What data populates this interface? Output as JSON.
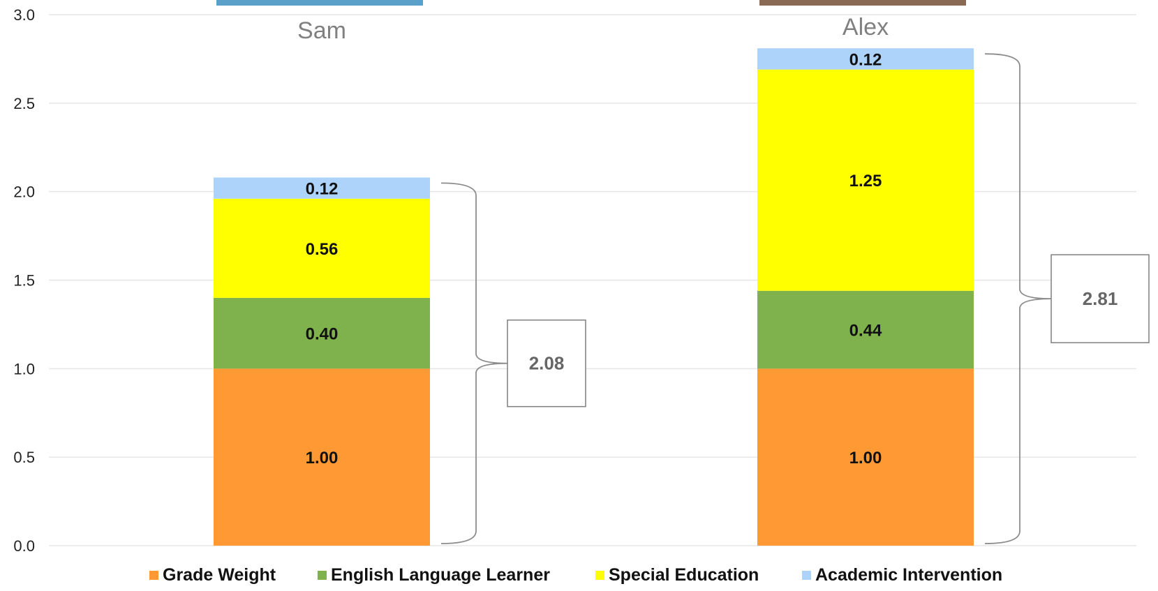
{
  "chart_data": {
    "type": "bar",
    "stacked": true,
    "categories": [
      "Sam",
      "Alex"
    ],
    "series": [
      {
        "name": "Grade Weight",
        "color": "#FF9933",
        "values": [
          1.0,
          1.0
        ],
        "labels": [
          "1.00",
          "1.00"
        ]
      },
      {
        "name": "English Language Learner",
        "color": "#7FB24C",
        "values": [
          0.4,
          0.44
        ],
        "labels": [
          "0.40",
          "0.44"
        ]
      },
      {
        "name": "Special Education",
        "color": "#FFFF00",
        "values": [
          0.56,
          1.25
        ],
        "labels": [
          "0.56",
          "1.25"
        ]
      },
      {
        "name": "Academic Intervention",
        "color": "#ADD3FA",
        "values": [
          0.12,
          0.12
        ],
        "labels": [
          "0.12",
          "0.12"
        ]
      }
    ],
    "totals": [
      "2.08",
      "2.81"
    ],
    "ylim": [
      0,
      3.0
    ],
    "yticks": [
      "0.0",
      "0.5",
      "1.0",
      "1.5",
      "2.0",
      "2.5",
      "3.0"
    ],
    "grid": true,
    "legend": "bottom",
    "gridline_color": "#E6E6E6"
  }
}
